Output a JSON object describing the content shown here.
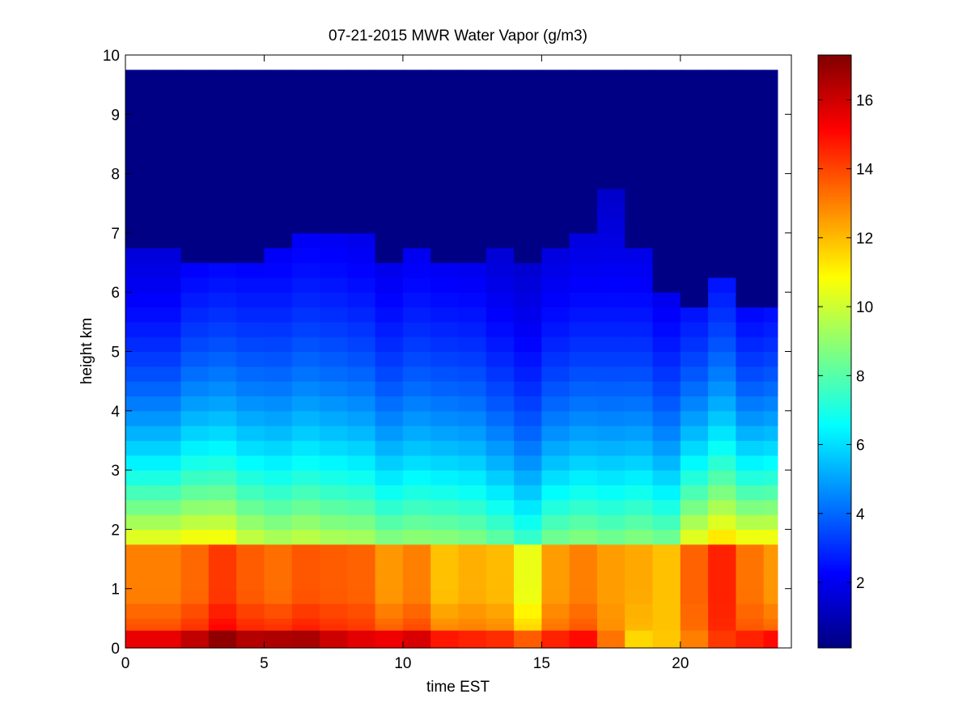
{
  "chart_data": {
    "type": "heatmap",
    "title": "07-21-2015 MWR Water Vapor (g/m3)",
    "xlabel": "time EST",
    "ylabel": "height km",
    "xlim": [
      0,
      24
    ],
    "ylim": [
      0,
      10
    ],
    "x_ticks": [
      0,
      5,
      10,
      15,
      20
    ],
    "y_ticks": [
      0,
      1,
      2,
      3,
      4,
      5,
      6,
      7,
      8,
      9,
      10
    ],
    "colormap": "jet",
    "colorbar": {
      "range": [
        0.1,
        17.3
      ],
      "ticks": [
        2,
        4,
        6,
        8,
        10,
        12,
        14,
        16
      ]
    },
    "x_step": 1,
    "x_end": 23.5,
    "columns": [
      {
        "x": 0,
        "low": 15.5,
        "mid": 13.0,
        "top": 10.6,
        "scale": 2.6,
        "dry": 6.8
      },
      {
        "x": 1,
        "low": 15.5,
        "mid": 13.0,
        "top": 10.6,
        "scale": 2.6,
        "dry": 6.8
      },
      {
        "x": 2,
        "low": 16.2,
        "mid": 13.4,
        "top": 10.9,
        "scale": 2.9,
        "dry": 6.4
      },
      {
        "x": 3,
        "low": 17.0,
        "mid": 14.2,
        "top": 10.9,
        "scale": 3.0,
        "dry": 6.6
      },
      {
        "x": 4,
        "low": 16.4,
        "mid": 13.6,
        "top": 10.0,
        "scale": 3.1,
        "dry": 6.5
      },
      {
        "x": 5,
        "low": 16.5,
        "mid": 13.3,
        "top": 9.6,
        "scale": 3.2,
        "dry": 6.7
      },
      {
        "x": 6,
        "low": 16.6,
        "mid": 13.7,
        "top": 9.9,
        "scale": 3.3,
        "dry": 6.9
      },
      {
        "x": 7,
        "low": 16.0,
        "mid": 13.6,
        "top": 9.6,
        "scale": 3.3,
        "dry": 6.9
      },
      {
        "x": 8,
        "low": 15.6,
        "mid": 13.5,
        "top": 9.5,
        "scale": 3.2,
        "dry": 6.9
      },
      {
        "x": 9,
        "low": 15.4,
        "mid": 12.6,
        "top": 8.9,
        "scale": 3.0,
        "dry": 6.6
      },
      {
        "x": 10,
        "low": 15.8,
        "mid": 13.0,
        "top": 9.1,
        "scale": 3.2,
        "dry": 6.8
      },
      {
        "x": 11,
        "low": 14.8,
        "mid": 11.9,
        "top": 9.0,
        "scale": 3.1,
        "dry": 6.6
      },
      {
        "x": 12,
        "low": 14.6,
        "mid": 12.2,
        "top": 8.8,
        "scale": 3.1,
        "dry": 6.5
      },
      {
        "x": 13,
        "low": 14.4,
        "mid": 12.0,
        "top": 8.3,
        "scale": 2.9,
        "dry": 6.8
      },
      {
        "x": 14,
        "low": 13.6,
        "mid": 10.5,
        "top": 7.6,
        "scale": 2.8,
        "dry": 6.5
      },
      {
        "x": 15,
        "low": 14.6,
        "mid": 12.5,
        "top": 8.6,
        "scale": 3.0,
        "dry": 6.7
      },
      {
        "x": 16,
        "low": 15.0,
        "mid": 13.0,
        "top": 8.9,
        "scale": 3.1,
        "dry": 6.9
      },
      {
        "x": 17,
        "low": 13.2,
        "mid": 12.5,
        "top": 8.6,
        "scale": 3.2,
        "dry": 7.7
      },
      {
        "x": 18,
        "low": 11.5,
        "mid": 12.3,
        "top": 8.9,
        "scale": 3.1,
        "dry": 6.7
      },
      {
        "x": 19,
        "low": 11.8,
        "mid": 11.9,
        "top": 8.6,
        "scale": 2.8,
        "dry": 6.0
      },
      {
        "x": 20,
        "low": 13.0,
        "mid": 13.5,
        "top": 10.6,
        "scale": 2.7,
        "dry": 5.7
      },
      {
        "x": 21,
        "low": 14.2,
        "mid": 14.6,
        "top": 11.5,
        "scale": 2.9,
        "dry": 6.2
      },
      {
        "x": 22,
        "low": 14.6,
        "mid": 13.2,
        "top": 10.9,
        "scale": 2.5,
        "dry": 5.7
      },
      {
        "x": 23,
        "low": 15.0,
        "mid": 12.6,
        "top": 10.9,
        "scale": 2.6,
        "dry": 5.8
      }
    ]
  }
}
